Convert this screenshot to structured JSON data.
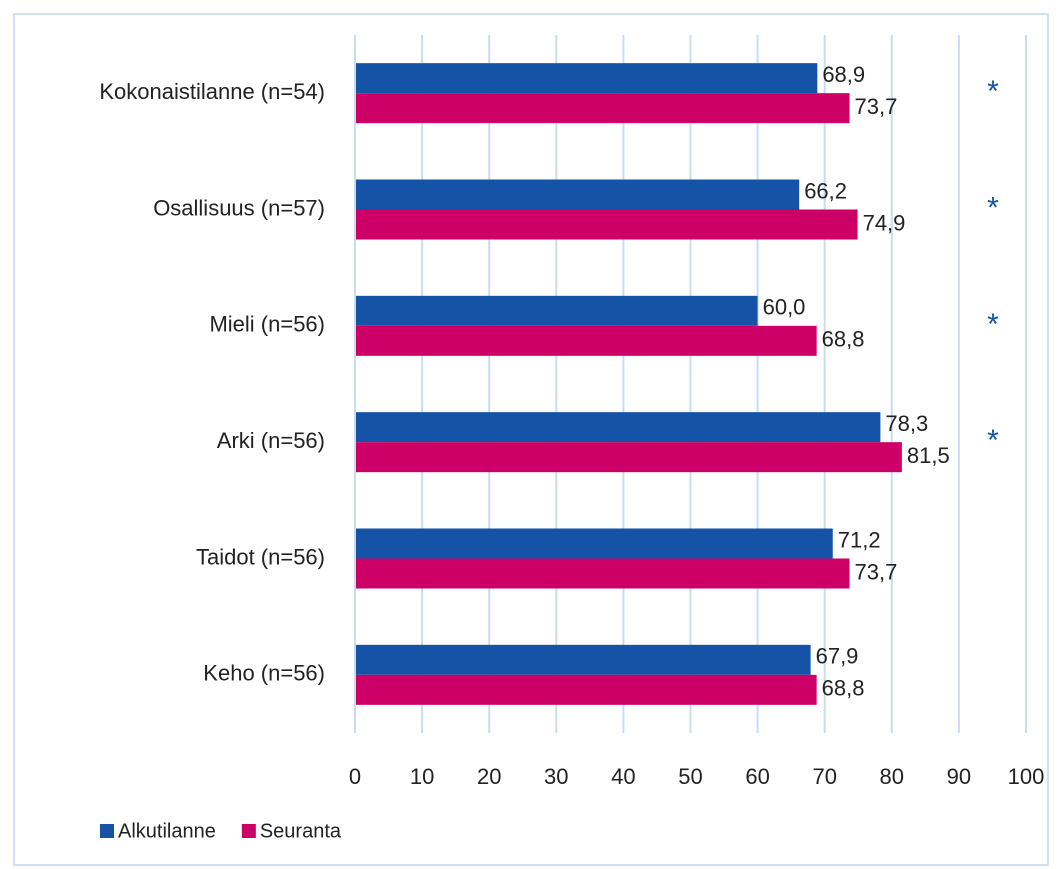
{
  "chart_data": {
    "type": "hbar",
    "categories": [
      "Kokonaistilanne (n=54)",
      "Osallisuus (n=57)",
      "Mieli (n=56)",
      "Arki (n=56)",
      "Taidot (n=56)",
      "Keho (n=56)"
    ],
    "series": [
      {
        "name": "Alkutilanne",
        "color": "#1553a6",
        "values": [
          68.9,
          66.2,
          60.0,
          78.3,
          71.2,
          67.9
        ],
        "value_labels": [
          "68,9",
          "66,2",
          "60,0",
          "78,3",
          "71,2",
          "67,9"
        ]
      },
      {
        "name": "Seuranta",
        "color": "#cc0066",
        "values": [
          73.7,
          74.9,
          68.8,
          81.5,
          73.7,
          68.8
        ],
        "value_labels": [
          "73,7",
          "74,9",
          "68,8",
          "81,5",
          "73,7",
          "68,8"
        ]
      }
    ],
    "annotations": [
      "*",
      "*",
      "*",
      "*",
      null,
      null
    ],
    "xlim": [
      0,
      100
    ],
    "xticks": [
      0,
      10,
      20,
      30,
      40,
      50,
      60,
      70,
      80,
      90,
      100
    ],
    "grid": true,
    "legend": "bottom-left"
  }
}
